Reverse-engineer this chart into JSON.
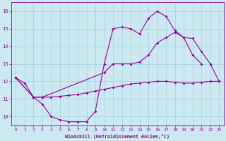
{
  "xlabel": "Windchill (Refroidissement éolien,°C)",
  "background_color": "#cce8f0",
  "grid_color": "#99ccdd",
  "line_color": "#990099",
  "xlim": [
    -0.5,
    23.5
  ],
  "ylim": [
    9.5,
    16.5
  ],
  "xticks": [
    0,
    1,
    2,
    3,
    4,
    5,
    6,
    7,
    8,
    9,
    10,
    11,
    12,
    13,
    14,
    15,
    16,
    17,
    18,
    19,
    20,
    21,
    22,
    23
  ],
  "yticks": [
    10,
    11,
    12,
    13,
    14,
    15,
    16
  ],
  "line1_x": [
    0,
    1,
    2,
    3,
    4,
    5,
    6,
    7,
    8,
    9,
    10,
    11,
    12,
    13,
    14,
    15,
    16,
    17,
    18,
    19,
    20,
    21
  ],
  "line1_y": [
    12.2,
    11.9,
    11.1,
    10.7,
    10.0,
    9.8,
    9.7,
    9.7,
    9.7,
    10.3,
    13.0,
    15.0,
    15.1,
    15.0,
    14.7,
    15.6,
    16.0,
    15.7,
    14.9,
    14.5,
    13.5,
    13.0
  ],
  "line2_x": [
    0,
    2,
    3,
    10,
    11,
    12,
    13,
    14,
    15,
    16,
    17,
    18,
    19,
    20,
    21,
    22,
    23
  ],
  "line2_y": [
    12.2,
    11.1,
    11.1,
    12.5,
    13.0,
    13.0,
    13.0,
    13.1,
    13.5,
    14.2,
    14.5,
    14.8,
    14.5,
    14.45,
    13.7,
    13.0,
    12.0
  ],
  "line3_x": [
    0,
    2,
    3,
    4,
    5,
    6,
    7,
    8,
    9,
    10,
    11,
    12,
    13,
    14,
    15,
    16,
    17,
    18,
    19,
    20,
    21,
    22,
    23
  ],
  "line3_y": [
    12.2,
    11.1,
    11.1,
    11.1,
    11.15,
    11.2,
    11.25,
    11.35,
    11.45,
    11.55,
    11.65,
    11.75,
    11.85,
    11.9,
    11.95,
    12.0,
    12.0,
    11.95,
    11.9,
    11.9,
    11.95,
    12.0,
    12.0
  ]
}
